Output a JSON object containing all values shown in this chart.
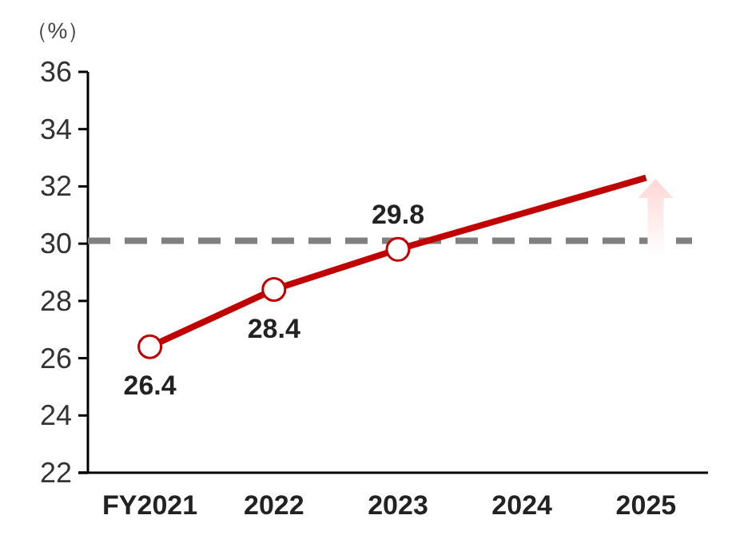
{
  "chart_data": {
    "type": "line",
    "ylabel": "（%）",
    "categories": [
      "FY2021",
      "2022",
      "2023",
      "2024",
      "2025"
    ],
    "series": [
      {
        "color": "#c00000",
        "marker": "circle",
        "data_labels": true,
        "values": [
          26.4,
          28.4,
          29.8,
          null,
          null
        ]
      },
      {
        "color": "#c00000",
        "marker": "none",
        "values": [
          null,
          null,
          29.8,
          31.05,
          32.3
        ]
      }
    ],
    "ylim": [
      22,
      36
    ],
    "yticks": [
      22,
      24,
      26,
      28,
      30,
      32,
      34,
      36
    ],
    "grid": false,
    "ref_lines": [
      {
        "axis": "y",
        "value": 30.1,
        "color": "#808080",
        "line_style": "dashed"
      }
    ]
  }
}
